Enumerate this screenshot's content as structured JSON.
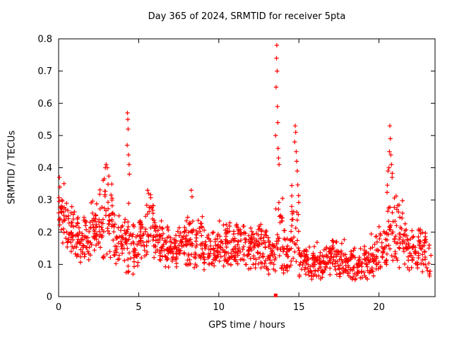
{
  "chart_data": {
    "type": "scatter",
    "title": "Day 365 of 2024, SRMTID for receiver 5pta",
    "xlabel": "GPS time / hours",
    "ylabel": "SRMTID / TECUs",
    "xlim": [
      0,
      23.5
    ],
    "ylim": [
      0,
      0.8
    ],
    "xticks": [
      0,
      5,
      10,
      15,
      20
    ],
    "xtick_labels": [
      "0",
      "5",
      "10",
      "15",
      "20"
    ],
    "yticks": [
      0,
      0.1,
      0.2,
      0.3,
      0.4,
      0.5,
      0.6,
      0.7,
      0.8
    ],
    "ytick_labels": [
      "0",
      "0.1",
      "0.2",
      "0.3",
      "0.4",
      "0.5",
      "0.6",
      "0.7",
      "0.8"
    ],
    "grid": false,
    "legend": "none",
    "marker": "plus",
    "marker_color": "#ff0000",
    "axis_color": "#000000",
    "seed": 20243,
    "band_bins": [
      [
        0.0,
        0.5,
        32,
        0.26,
        0.05,
        0.15,
        0.37
      ],
      [
        0.5,
        0.5,
        32,
        0.21,
        0.04,
        0.12,
        0.31
      ],
      [
        1.0,
        0.5,
        32,
        0.18,
        0.04,
        0.1,
        0.27
      ],
      [
        1.5,
        0.5,
        32,
        0.17,
        0.04,
        0.09,
        0.26
      ],
      [
        2.0,
        0.5,
        32,
        0.2,
        0.05,
        0.1,
        0.31
      ],
      [
        2.5,
        0.5,
        32,
        0.24,
        0.06,
        0.12,
        0.38
      ],
      [
        3.0,
        0.5,
        32,
        0.24,
        0.06,
        0.1,
        0.39
      ],
      [
        3.5,
        0.5,
        30,
        0.16,
        0.04,
        0.08,
        0.26
      ],
      [
        4.0,
        0.5,
        30,
        0.16,
        0.06,
        0.07,
        0.35
      ],
      [
        4.5,
        0.5,
        30,
        0.14,
        0.05,
        0.07,
        0.3
      ],
      [
        5.0,
        0.5,
        32,
        0.2,
        0.05,
        0.1,
        0.3
      ],
      [
        5.5,
        0.5,
        32,
        0.23,
        0.05,
        0.12,
        0.32
      ],
      [
        6.0,
        0.5,
        32,
        0.18,
        0.04,
        0.1,
        0.27
      ],
      [
        6.5,
        0.5,
        32,
        0.15,
        0.04,
        0.08,
        0.24
      ],
      [
        7.0,
        0.5,
        32,
        0.15,
        0.04,
        0.08,
        0.23
      ],
      [
        7.5,
        0.5,
        32,
        0.16,
        0.04,
        0.09,
        0.25
      ],
      [
        8.0,
        0.5,
        32,
        0.17,
        0.05,
        0.09,
        0.28
      ],
      [
        8.5,
        0.5,
        30,
        0.16,
        0.05,
        0.08,
        0.3
      ],
      [
        9.0,
        0.5,
        30,
        0.14,
        0.04,
        0.07,
        0.22
      ],
      [
        9.5,
        0.5,
        30,
        0.14,
        0.04,
        0.07,
        0.22
      ],
      [
        10.0,
        0.5,
        32,
        0.15,
        0.04,
        0.08,
        0.24
      ],
      [
        10.5,
        0.5,
        32,
        0.16,
        0.04,
        0.08,
        0.26
      ],
      [
        11.0,
        0.5,
        32,
        0.16,
        0.04,
        0.09,
        0.27
      ],
      [
        11.5,
        0.5,
        32,
        0.15,
        0.04,
        0.08,
        0.24
      ],
      [
        12.0,
        0.5,
        32,
        0.16,
        0.04,
        0.08,
        0.25
      ],
      [
        12.5,
        0.5,
        32,
        0.15,
        0.04,
        0.08,
        0.23
      ],
      [
        13.0,
        0.5,
        30,
        0.13,
        0.03,
        0.07,
        0.2
      ],
      [
        13.5,
        0.5,
        28,
        0.18,
        0.08,
        0.08,
        0.4
      ],
      [
        14.0,
        0.5,
        30,
        0.14,
        0.04,
        0.07,
        0.24
      ],
      [
        14.5,
        0.5,
        30,
        0.22,
        0.08,
        0.1,
        0.42
      ],
      [
        15.0,
        0.5,
        30,
        0.12,
        0.03,
        0.06,
        0.2
      ],
      [
        15.5,
        0.5,
        30,
        0.1,
        0.03,
        0.05,
        0.18
      ],
      [
        16.0,
        0.5,
        30,
        0.1,
        0.03,
        0.05,
        0.17
      ],
      [
        16.5,
        0.5,
        30,
        0.11,
        0.03,
        0.06,
        0.19
      ],
      [
        17.0,
        0.5,
        30,
        0.12,
        0.03,
        0.06,
        0.2
      ],
      [
        17.5,
        0.5,
        30,
        0.11,
        0.03,
        0.06,
        0.18
      ],
      [
        18.0,
        0.5,
        30,
        0.09,
        0.03,
        0.05,
        0.16
      ],
      [
        18.5,
        0.5,
        30,
        0.09,
        0.03,
        0.05,
        0.16
      ],
      [
        19.0,
        0.5,
        30,
        0.1,
        0.03,
        0.05,
        0.17
      ],
      [
        19.5,
        0.5,
        30,
        0.12,
        0.04,
        0.06,
        0.21
      ],
      [
        20.0,
        0.5,
        30,
        0.15,
        0.04,
        0.08,
        0.24
      ],
      [
        20.5,
        0.5,
        28,
        0.23,
        0.08,
        0.1,
        0.42
      ],
      [
        21.0,
        0.5,
        30,
        0.2,
        0.06,
        0.09,
        0.33
      ],
      [
        21.5,
        0.5,
        30,
        0.15,
        0.04,
        0.08,
        0.24
      ],
      [
        22.0,
        0.5,
        30,
        0.14,
        0.04,
        0.07,
        0.22
      ],
      [
        22.5,
        0.5,
        30,
        0.15,
        0.04,
        0.06,
        0.22
      ],
      [
        23.0,
        0.25,
        8,
        0.12,
        0.05,
        0.04,
        0.19
      ]
    ],
    "outliers": [
      [
        0.05,
        0.37
      ],
      [
        0.08,
        0.34
      ],
      [
        2.92,
        0.4
      ],
      [
        2.97,
        0.41
      ],
      [
        3.04,
        0.4
      ],
      [
        4.28,
        0.47
      ],
      [
        4.3,
        0.57
      ],
      [
        4.32,
        0.55
      ],
      [
        4.34,
        0.52
      ],
      [
        4.36,
        0.44
      ],
      [
        4.4,
        0.41
      ],
      [
        4.42,
        0.38
      ],
      [
        5.55,
        0.33
      ],
      [
        5.62,
        0.32
      ],
      [
        8.28,
        0.33
      ],
      [
        8.33,
        0.31
      ],
      [
        13.55,
        0.5
      ],
      [
        13.58,
        0.65
      ],
      [
        13.6,
        0.74
      ],
      [
        13.62,
        0.78
      ],
      [
        13.64,
        0.7
      ],
      [
        13.66,
        0.59
      ],
      [
        13.68,
        0.54
      ],
      [
        13.7,
        0.46
      ],
      [
        13.73,
        0.43
      ],
      [
        13.76,
        0.41
      ],
      [
        14.74,
        0.48
      ],
      [
        14.77,
        0.53
      ],
      [
        14.8,
        0.51
      ],
      [
        14.83,
        0.45
      ],
      [
        14.86,
        0.42
      ],
      [
        14.9,
        0.39
      ],
      [
        20.62,
        0.4
      ],
      [
        20.65,
        0.45
      ],
      [
        20.68,
        0.53
      ],
      [
        20.71,
        0.49
      ],
      [
        20.74,
        0.44
      ],
      [
        20.78,
        0.41
      ],
      [
        20.82,
        0.37
      ]
    ],
    "square_points": [
      [
        13.55,
        0.004
      ]
    ]
  }
}
